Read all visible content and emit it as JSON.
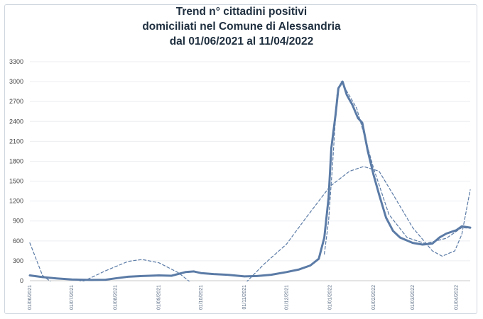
{
  "chart_data": {
    "type": "line",
    "title": "Trend n° cittadini positivi domiciliati nel Comune di Alessandria dal 01/06/2021 al 11/04/2022",
    "title_lines": [
      "Trend n° cittadini positivi",
      "domiciliati nel Comune di Alessandria",
      "dal 01/06/2021 al 11/04/2022"
    ],
    "xlabel": "",
    "ylabel": "",
    "ylim": [
      0,
      3300
    ],
    "y_ticks": [
      0,
      300,
      600,
      900,
      1200,
      1500,
      1800,
      2100,
      2400,
      2700,
      3000,
      3300
    ],
    "x_range": [
      "2021-06-01",
      "2022-04-11"
    ],
    "x_ticks": [
      {
        "date": "2021-06-01",
        "label": "01/06/2021"
      },
      {
        "date": "2021-07-01",
        "label": "01/07/2021"
      },
      {
        "date": "2021-08-01",
        "label": "01/08/2021"
      },
      {
        "date": "2021-09-01",
        "label": "01/09/2021"
      },
      {
        "date": "2021-10-01",
        "label": "01/10/2021"
      },
      {
        "date": "2021-11-01",
        "label": "01/11/2021"
      },
      {
        "date": "2021-12-01",
        "label": "01/12/2021"
      },
      {
        "date": "2022-01-01",
        "label": "01/01/2022"
      },
      {
        "date": "2022-02-01",
        "label": "01/02/2022"
      },
      {
        "date": "2022-03-01",
        "label": "01/03/2022"
      },
      {
        "date": "2022-04-01",
        "label": "01/04/2022"
      }
    ],
    "grid": "horizontal",
    "legend": "none",
    "series": [
      {
        "style": "solid",
        "color": "#5b7ba6",
        "points": [
          [
            "2021-06-01",
            80
          ],
          [
            "2021-06-10",
            55
          ],
          [
            "2021-06-20",
            35
          ],
          [
            "2021-07-01",
            18
          ],
          [
            "2021-07-15",
            12
          ],
          [
            "2021-07-25",
            15
          ],
          [
            "2021-08-01",
            35
          ],
          [
            "2021-08-10",
            60
          ],
          [
            "2021-08-20",
            70
          ],
          [
            "2021-09-01",
            80
          ],
          [
            "2021-09-10",
            75
          ],
          [
            "2021-09-20",
            130
          ],
          [
            "2021-09-26",
            140
          ],
          [
            "2021-10-01",
            115
          ],
          [
            "2021-10-10",
            100
          ],
          [
            "2021-10-20",
            90
          ],
          [
            "2021-11-01",
            65
          ],
          [
            "2021-11-10",
            70
          ],
          [
            "2021-11-20",
            90
          ],
          [
            "2021-12-01",
            130
          ],
          [
            "2021-12-10",
            170
          ],
          [
            "2021-12-18",
            230
          ],
          [
            "2021-12-24",
            330
          ],
          [
            "2021-12-28",
            650
          ],
          [
            "2021-12-31",
            1250
          ],
          [
            "2022-01-02",
            2000
          ],
          [
            "2022-01-05",
            2500
          ],
          [
            "2022-01-07",
            2900
          ],
          [
            "2022-01-10",
            3000
          ],
          [
            "2022-01-13",
            2800
          ],
          [
            "2022-01-17",
            2650
          ],
          [
            "2022-01-21",
            2450
          ],
          [
            "2022-01-24",
            2380
          ],
          [
            "2022-01-28",
            1950
          ],
          [
            "2022-02-01",
            1600
          ],
          [
            "2022-02-05",
            1300
          ],
          [
            "2022-02-10",
            950
          ],
          [
            "2022-02-15",
            750
          ],
          [
            "2022-02-20",
            650
          ],
          [
            "2022-03-01",
            570
          ],
          [
            "2022-03-08",
            545
          ],
          [
            "2022-03-15",
            560
          ],
          [
            "2022-03-20",
            650
          ],
          [
            "2022-03-25",
            710
          ],
          [
            "2022-04-01",
            760
          ],
          [
            "2022-04-05",
            820
          ],
          [
            "2022-04-11",
            800
          ]
        ]
      },
      {
        "style": "dashed",
        "color": "#5b7ba6",
        "points": [
          [
            "2021-06-01",
            570
          ],
          [
            "2021-06-10",
            80
          ],
          [
            "2021-06-20",
            -80
          ],
          [
            "2021-07-10",
            0
          ],
          [
            "2021-07-25",
            150
          ],
          [
            "2021-08-10",
            290
          ],
          [
            "2021-08-20",
            320
          ],
          [
            "2021-09-01",
            270
          ],
          [
            "2021-09-15",
            120
          ],
          [
            "2021-10-01",
            -150
          ],
          [
            "2021-10-20",
            -400
          ],
          [
            "2021-11-01",
            -50
          ],
          [
            "2021-11-15",
            250
          ],
          [
            "2021-12-01",
            550
          ],
          [
            "2021-12-15",
            950
          ],
          [
            "2022-01-01",
            1420
          ],
          [
            "2022-01-15",
            1650
          ],
          [
            "2022-01-25",
            1720
          ],
          [
            "2022-02-05",
            1650
          ],
          [
            "2022-02-15",
            1300
          ],
          [
            "2022-03-01",
            800
          ],
          [
            "2022-03-15",
            450
          ],
          [
            "2022-03-22",
            370
          ],
          [
            "2022-03-31",
            450
          ],
          [
            "2022-04-05",
            700
          ],
          [
            "2022-04-11",
            1370
          ]
        ]
      },
      {
        "style": "dashed",
        "color": "#5b7ba6",
        "points": [
          [
            "2021-12-28",
            400
          ],
          [
            "2021-12-31",
            900
          ],
          [
            "2022-01-03",
            1800
          ],
          [
            "2022-01-06",
            2800
          ],
          [
            "2022-01-09",
            3000
          ],
          [
            "2022-01-20",
            2600
          ],
          [
            "2022-02-01",
            1700
          ],
          [
            "2022-02-12",
            1000
          ],
          [
            "2022-02-25",
            650
          ],
          [
            "2022-03-10",
            560
          ],
          [
            "2022-03-25",
            640
          ],
          [
            "2022-04-05",
            800
          ],
          [
            "2022-04-11",
            790
          ]
        ]
      }
    ]
  }
}
